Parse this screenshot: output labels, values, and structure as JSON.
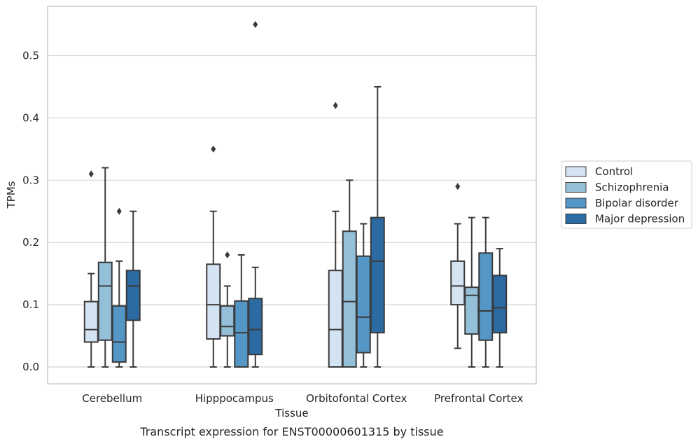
{
  "chart_data": {
    "type": "box",
    "xlabel": "Tissue",
    "ylabel": "TPMs",
    "caption": "Transcript expression for ENST00000601315 by tissue",
    "categories": [
      "Cerebellum",
      "Hipppocampus",
      "Orbitofontal Cortex",
      "Prefrontal Cortex"
    ],
    "ylim": [
      -0.027,
      0.582
    ],
    "yticks": [
      0.0,
      0.1,
      0.2,
      0.3,
      0.4,
      0.5
    ],
    "ytick_labels": [
      "0.0",
      "0.1",
      "0.2",
      "0.3",
      "0.4",
      "0.5"
    ],
    "grid": true,
    "legend_position": "right",
    "series": [
      {
        "name": "Control",
        "color": "#d4e3f2",
        "boxes": [
          {
            "whislo": 0.0,
            "q1": 0.04,
            "med": 0.06,
            "q3": 0.105,
            "whishi": 0.15,
            "fliers": [
              0.31
            ]
          },
          {
            "whislo": 0.0,
            "q1": 0.045,
            "med": 0.1,
            "q3": 0.165,
            "whishi": 0.25,
            "fliers": [
              0.35
            ]
          },
          {
            "whislo": 0.0,
            "q1": 0.0,
            "med": 0.06,
            "q3": 0.155,
            "whishi": 0.25,
            "fliers": [
              0.42
            ]
          },
          {
            "whislo": 0.03,
            "q1": 0.1,
            "med": 0.13,
            "q3": 0.17,
            "whishi": 0.23,
            "fliers": [
              0.29
            ]
          }
        ]
      },
      {
        "name": "Schizophrenia",
        "color": "#94bfd9",
        "boxes": [
          {
            "whislo": 0.0,
            "q1": 0.043,
            "med": 0.13,
            "q3": 0.168,
            "whishi": 0.32,
            "fliers": []
          },
          {
            "whislo": 0.0,
            "q1": 0.05,
            "med": 0.065,
            "q3": 0.098,
            "whishi": 0.13,
            "fliers": [
              0.18
            ]
          },
          {
            "whislo": 0.0,
            "q1": 0.0,
            "med": 0.105,
            "q3": 0.218,
            "whishi": 0.3,
            "fliers": []
          },
          {
            "whislo": 0.0,
            "q1": 0.053,
            "med": 0.115,
            "q3": 0.128,
            "whishi": 0.24,
            "fliers": []
          }
        ]
      },
      {
        "name": "Bipolar disorder",
        "color": "#5496c5",
        "boxes": [
          {
            "whislo": 0.0,
            "q1": 0.008,
            "med": 0.04,
            "q3": 0.098,
            "whishi": 0.17,
            "fliers": [
              0.25
            ]
          },
          {
            "whislo": 0.0,
            "q1": 0.0,
            "med": 0.055,
            "q3": 0.106,
            "whishi": 0.18,
            "fliers": []
          },
          {
            "whislo": 0.0,
            "q1": 0.023,
            "med": 0.08,
            "q3": 0.178,
            "whishi": 0.23,
            "fliers": []
          },
          {
            "whislo": 0.0,
            "q1": 0.043,
            "med": 0.09,
            "q3": 0.183,
            "whishi": 0.24,
            "fliers": []
          }
        ]
      },
      {
        "name": "Major depression",
        "color": "#2b6aa3",
        "boxes": [
          {
            "whislo": 0.0,
            "q1": 0.075,
            "med": 0.13,
            "q3": 0.155,
            "whishi": 0.25,
            "fliers": []
          },
          {
            "whislo": 0.0,
            "q1": 0.02,
            "med": 0.06,
            "q3": 0.11,
            "whishi": 0.16,
            "fliers": [
              0.55
            ]
          },
          {
            "whislo": 0.0,
            "q1": 0.055,
            "med": 0.17,
            "q3": 0.24,
            "whishi": 0.45,
            "fliers": []
          },
          {
            "whislo": 0.0,
            "q1": 0.055,
            "med": 0.095,
            "q3": 0.147,
            "whishi": 0.19,
            "fliers": []
          }
        ]
      }
    ]
  }
}
